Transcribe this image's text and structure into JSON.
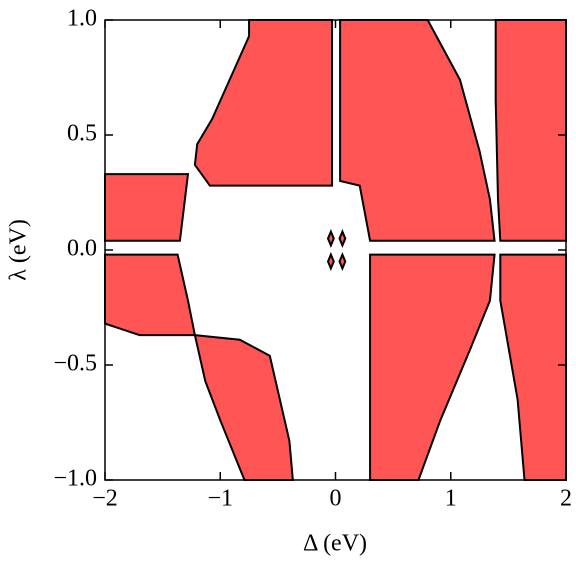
{
  "chart_data": {
    "type": "region",
    "xlabel": "Δ (eV)",
    "ylabel": "λ (eV)",
    "xlim": [
      -2,
      2
    ],
    "ylim": [
      -1,
      1
    ],
    "xticks": [
      {
        "value": -2,
        "label": "−2"
      },
      {
        "value": -1,
        "label": "−1"
      },
      0,
      1,
      2
    ],
    "yticks": [
      {
        "value": -1,
        "label": "−1.0"
      },
      {
        "value": -0.5,
        "label": "−0.5"
      },
      {
        "value": 0,
        "label": "0.0"
      },
      {
        "value": 0.5,
        "label": "0.5"
      },
      {
        "value": 1,
        "label": "1.0"
      }
    ],
    "color": "#ff5555",
    "regions": [
      {
        "points": [
          [
            -0.75,
            1
          ],
          [
            -0.03,
            1
          ],
          [
            -0.03,
            0.28
          ],
          [
            -1.09,
            0.28
          ],
          [
            -1.22,
            0.37
          ],
          [
            -1.2,
            0.46
          ],
          [
            -1.07,
            0.57
          ],
          [
            -0.75,
            0.93
          ]
        ]
      },
      {
        "points": [
          [
            0.04,
            1
          ],
          [
            0.8,
            1
          ],
          [
            1.08,
            0.74
          ],
          [
            1.25,
            0.43
          ],
          [
            1.34,
            0.22
          ],
          [
            1.38,
            0.04
          ],
          [
            0.3,
            0.04
          ],
          [
            0.21,
            0.28
          ],
          [
            0.04,
            0.3
          ]
        ]
      },
      {
        "points": [
          [
            1.39,
            1
          ],
          [
            2,
            1
          ],
          [
            2,
            0.04
          ],
          [
            1.43,
            0.04
          ],
          [
            1.41,
            0.22
          ],
          [
            1.39,
            0.65
          ]
        ]
      },
      {
        "points": [
          [
            -2,
            0.33
          ],
          [
            -1.28,
            0.33
          ],
          [
            -1.35,
            0.04
          ],
          [
            -2,
            0.04
          ]
        ]
      },
      {
        "points": [
          [
            -2,
            -0.02
          ],
          [
            -1.37,
            -0.02
          ],
          [
            -1.28,
            -0.22
          ],
          [
            -1.22,
            -0.37
          ],
          [
            -1.7,
            -0.37
          ],
          [
            -2,
            -0.32
          ]
        ]
      },
      {
        "points": [
          [
            -1.22,
            -0.37
          ],
          [
            -0.83,
            -0.39
          ],
          [
            -0.57,
            -0.46
          ],
          [
            -0.4,
            -0.83
          ],
          [
            -0.37,
            -1
          ],
          [
            -0.79,
            -1
          ],
          [
            -1,
            -0.74
          ],
          [
            -1.13,
            -0.57
          ]
        ]
      },
      {
        "points": [
          [
            0.3,
            -0.02
          ],
          [
            1.38,
            -0.02
          ],
          [
            1.34,
            -0.22
          ],
          [
            1.17,
            -0.43
          ],
          [
            0.91,
            -0.74
          ],
          [
            0.72,
            -1
          ],
          [
            0.3,
            -1
          ]
        ]
      },
      {
        "points": [
          [
            1.43,
            -0.02
          ],
          [
            2,
            -0.02
          ],
          [
            2,
            -1
          ],
          [
            1.64,
            -1
          ],
          [
            1.58,
            -0.65
          ],
          [
            1.43,
            -0.22
          ]
        ]
      },
      {
        "points": [
          [
            -0.04,
            0.08
          ],
          [
            -0.015,
            0.05
          ],
          [
            -0.04,
            0.02
          ],
          [
            -0.065,
            0.05
          ]
        ]
      },
      {
        "points": [
          [
            0.06,
            0.08
          ],
          [
            0.085,
            0.05
          ],
          [
            0.06,
            0.02
          ],
          [
            0.035,
            0.05
          ]
        ]
      },
      {
        "points": [
          [
            -0.04,
            -0.02
          ],
          [
            -0.015,
            -0.05
          ],
          [
            -0.04,
            -0.08
          ],
          [
            -0.065,
            -0.05
          ]
        ]
      },
      {
        "points": [
          [
            0.06,
            -0.02
          ],
          [
            0.085,
            -0.05
          ],
          [
            0.06,
            -0.08
          ],
          [
            0.035,
            -0.05
          ]
        ]
      }
    ]
  }
}
